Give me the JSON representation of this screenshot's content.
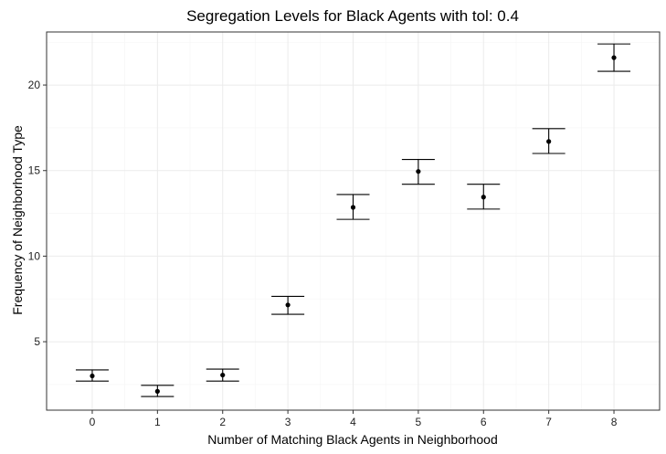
{
  "chart_data": {
    "type": "scatter",
    "title": "Segregation Levels for Black Agents with tol: 0.4",
    "xlabel": "Number of Matching Black Agents in Neighborhood",
    "ylabel": "Frequency of Neighborhood Type",
    "xlim": [
      -0.7,
      8.7
    ],
    "ylim": [
      1.0,
      23.1
    ],
    "x_ticks": [
      0,
      1,
      2,
      3,
      4,
      5,
      6,
      7,
      8
    ],
    "y_ticks": [
      5,
      10,
      15,
      20
    ],
    "grid": true,
    "series": [
      {
        "x": [
          0,
          1,
          2,
          3,
          4,
          5,
          6,
          7,
          8
        ],
        "y": [
          3.0,
          2.1,
          3.05,
          7.15,
          12.85,
          14.95,
          13.45,
          16.7,
          21.6
        ],
        "ymin": [
          2.7,
          1.8,
          2.7,
          6.6,
          12.15,
          14.2,
          12.75,
          16.0,
          20.8
        ],
        "ymax": [
          3.35,
          2.45,
          3.4,
          7.65,
          13.6,
          15.65,
          14.2,
          17.45,
          22.4
        ]
      }
    ],
    "colors": {
      "point": "#000000",
      "grid": "#ebebeb",
      "panel_border": "#333333"
    }
  }
}
